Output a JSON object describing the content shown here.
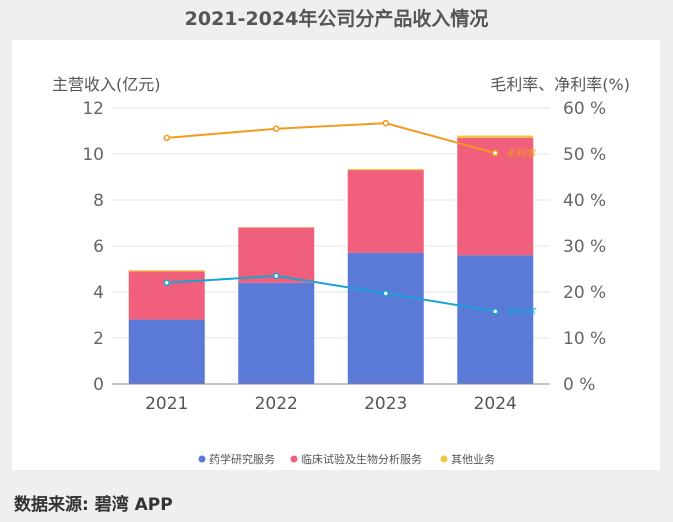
{
  "page": {
    "title": "2021-2024年公司分产品收入情况",
    "source": "数据来源: 碧湾 APP"
  },
  "chart_data": {
    "type": "bar",
    "title": "2021-2024年公司分产品收入情况",
    "stacked": true,
    "categories": [
      "2021",
      "2022",
      "2023",
      "2024"
    ],
    "ylabel": "主营收入(亿元)",
    "y2label": "毛利率、净利率(%)",
    "ylim": [
      0,
      12
    ],
    "y2lim": [
      0,
      60
    ],
    "yticks": [
      "0",
      "2",
      "4",
      "6",
      "8",
      "10",
      "12"
    ],
    "y2ticks": [
      "0 %",
      "10 %",
      "20 %",
      "30 %",
      "40 %",
      "50 %",
      "60 %"
    ],
    "series": [
      {
        "name": "药学研究服务",
        "kind": "bar",
        "color": "#5b79d7",
        "values": [
          2.8,
          4.4,
          5.7,
          5.6
        ]
      },
      {
        "name": "临床试验及生物分析服务",
        "kind": "bar",
        "color": "#f0607c",
        "values": [
          2.1,
          2.4,
          3.6,
          5.1
        ]
      },
      {
        "name": "其他业务",
        "kind": "bar",
        "color": "#f5c342",
        "values": [
          0.05,
          0.02,
          0.05,
          0.1
        ]
      },
      {
        "name": "毛利率",
        "kind": "line",
        "axis": "right",
        "color": "#f29a1e",
        "values": [
          53.5,
          55.5,
          56.7,
          50.2
        ]
      },
      {
        "name": "净利率",
        "kind": "line",
        "axis": "right",
        "color": "#1aa3d6",
        "values": [
          22.0,
          23.5,
          19.7,
          15.8
        ]
      }
    ],
    "line_labels": {
      "gross": "毛利率",
      "net": "净利率"
    },
    "legend": [
      "药学研究服务",
      "临床试验及生物分析服务",
      "其他业务"
    ],
    "legend_position": "bottom",
    "grid": true
  }
}
